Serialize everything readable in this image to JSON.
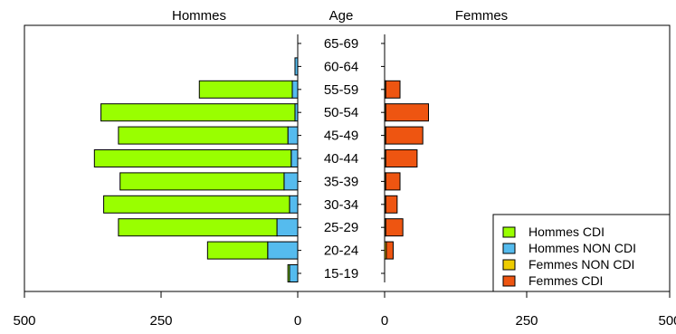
{
  "chart_data": {
    "type": "bar",
    "subtype": "population-pyramid",
    "headers": {
      "left": "Hommes",
      "center": "Age",
      "right": "Femmes"
    },
    "categories": [
      "15-19",
      "20-24",
      "25-29",
      "30-34",
      "35-39",
      "40-44",
      "45-49",
      "50-54",
      "55-59",
      "60-64",
      "65-69"
    ],
    "left_axis": {
      "range": [
        500,
        0
      ],
      "ticks": [
        "500",
        "250",
        "0"
      ]
    },
    "right_axis": {
      "range": [
        0,
        500
      ],
      "ticks": [
        "0",
        "250",
        "500"
      ]
    },
    "series": [
      {
        "name": "Hommes CDI",
        "side": "left",
        "color": "#99ff00",
        "values": [
          3,
          110,
          290,
          340,
          300,
          360,
          310,
          355,
          170,
          0,
          0
        ]
      },
      {
        "name": "Hommes NON CDI",
        "side": "left",
        "color": "#55bbee",
        "values": [
          15,
          55,
          38,
          15,
          25,
          12,
          18,
          5,
          10,
          5,
          0
        ]
      },
      {
        "name": "Femmes NON CDI",
        "side": "right",
        "color": "#eecc00",
        "values": [
          0,
          3,
          2,
          2,
          2,
          2,
          2,
          2,
          2,
          0,
          0
        ]
      },
      {
        "name": "Femmes CDI",
        "side": "right",
        "color": "#ee5511",
        "values": [
          0,
          12,
          30,
          20,
          25,
          55,
          65,
          75,
          25,
          0,
          0
        ]
      }
    ],
    "legend": {
      "position": "bottom-right"
    }
  }
}
